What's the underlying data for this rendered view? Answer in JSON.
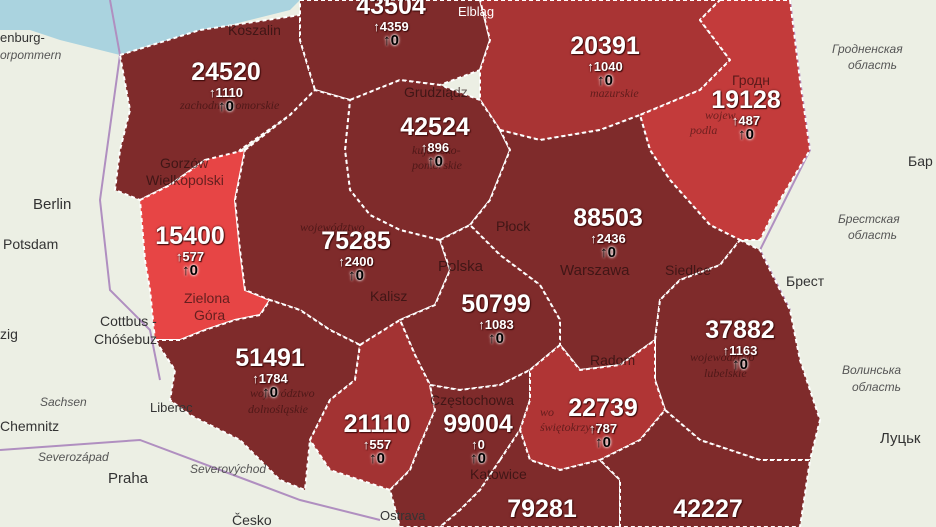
{
  "colors": {
    "land": "#ecefe4",
    "sea": "#aad3df",
    "dark_region": "#7e2a2a",
    "mid_region": "#a33232",
    "light_region": "#c23a3a",
    "lightest_region": "#e74444",
    "border": "#ffffff"
  },
  "regions": [
    {
      "id": "zachodniopomorskie",
      "total": "24520",
      "new": "↑1110",
      "deaths": "↑0",
      "shade": "dark"
    },
    {
      "id": "pomorskie",
      "total": "43504",
      "new": "↑4359",
      "deaths": "↑0",
      "shade": "dark"
    },
    {
      "id": "warminsko-mazurskie",
      "total": "20391",
      "new": "↑1040",
      "deaths": "↑0",
      "shade": "light"
    },
    {
      "id": "podlaskie",
      "total": "19128",
      "new": "↑487",
      "deaths": "↑0",
      "shade": "lighter"
    },
    {
      "id": "kujawsko-pomorskie",
      "total": "42524",
      "new": "↑896",
      "deaths": "↑0",
      "shade": "dark"
    },
    {
      "id": "lubuskie",
      "total": "15400",
      "new": "↑577",
      "deaths": "↑0",
      "shade": "lightest"
    },
    {
      "id": "wielkopolskie",
      "total": "75285",
      "new": "↑2400",
      "deaths": "↑0",
      "shade": "dark"
    },
    {
      "id": "mazowieckie",
      "total": "88503",
      "new": "↑2436",
      "deaths": "↑0",
      "shade": "dark"
    },
    {
      "id": "lodzkie",
      "total": "50799",
      "new": "↑1083",
      "deaths": "↑0",
      "shade": "dark"
    },
    {
      "id": "lubelskie",
      "total": "37882",
      "new": "↑1163",
      "deaths": "↑0",
      "shade": "dark"
    },
    {
      "id": "dolnoslaskie",
      "total": "51491",
      "new": "↑1784",
      "deaths": "↑0",
      "shade": "dark"
    },
    {
      "id": "opolskie",
      "total": "21110",
      "new": "↑557",
      "deaths": "↑0",
      "shade": "mid"
    },
    {
      "id": "slaskie",
      "total": "99004",
      "new": "↑0",
      "deaths": "↑0",
      "shade": "dark"
    },
    {
      "id": "swietokrzyskie",
      "total": "22739",
      "new": "↑787",
      "deaths": "↑0",
      "shade": "light"
    },
    {
      "id": "malopolskie",
      "total": "79281",
      "new": "",
      "deaths": "",
      "shade": "dark"
    },
    {
      "id": "podkarpackie",
      "total": "42227",
      "new": "",
      "deaths": "",
      "shade": "dark"
    }
  ],
  "background_labels": {
    "berlin": "Berlin",
    "potsdam": "Potsdam",
    "cottbus": "Cottbus -",
    "chosebuz": "Chóśebuz",
    "sachsen": "Sachsen",
    "chemnitz": "Chemnitz",
    "severozapad": "Severozápad",
    "praha": "Praha",
    "severovychod": "Severovýchod",
    "cesko": "Česko",
    "ostrava": "Ostrava",
    "liberec": "Liberec",
    "zig": "zig",
    "enburg": "enburg-",
    "orpommern": "orpommern",
    "grodno_obl": "Гродненская",
    "oblast1": "область",
    "grodno": "Гродн",
    "bar": "Бар",
    "brest_obl": "Брестская",
    "oblast2": "область",
    "brest": "Брест",
    "volyn": "Волинська",
    "oblast3": "область",
    "lutsk": "Луцьк",
    "elblag": "Elbląg"
  },
  "inner_labels": {
    "koszalin": "Koszalin",
    "gorzow": "Gorzów",
    "wielkopolski": "Wielkopolski",
    "zielona": "Zielona",
    "gora": "Góra",
    "plock": "Płock",
    "polska": "Polska",
    "warszawa": "Warszawa",
    "kalisz": "Kalisz",
    "radom": "Radom",
    "siedlce": "Siedlce",
    "czestochowa": "Częstochowa",
    "katowice": "Katowice",
    "grudziadz": "Grudziądz",
    "wojewodztwo": "województwo",
    "zachodniopomorskie": "zachodniopomorskie",
    "kujawsko": "kujawsko-",
    "pomorskie": "pomorskie",
    "mazurskie": "mazurskie",
    "wojew": "wojew",
    "podla": "podla",
    "dolnoslaskie": "dolnośląskie",
    "lubelskie": "lubelskie",
    "swietokrzyskie": "świętokrzyskie",
    "woj": "wo"
  }
}
